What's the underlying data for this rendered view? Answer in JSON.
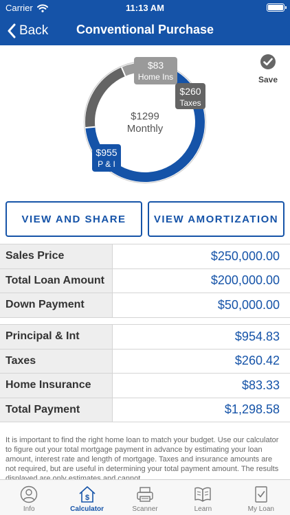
{
  "status_bar": {
    "carrier": "Carrier",
    "time": "11:13 AM"
  },
  "nav": {
    "back_label": "Back",
    "title": "Conventional Purchase"
  },
  "chart_data": {
    "type": "pie",
    "center_label": [
      "$1299",
      "Monthly"
    ],
    "slices": [
      {
        "label": "P & I",
        "value_label": "$955",
        "value": 954.83,
        "color": "#1553a8"
      },
      {
        "label": "Taxes",
        "value_label": "$260",
        "value": 260.42,
        "color": "#646464"
      },
      {
        "label": "Home Ins",
        "value_label": "$83",
        "value": 83.33,
        "color": "#9a9a9a"
      }
    ]
  },
  "save": {
    "label": "Save"
  },
  "buttons": {
    "share": "VIEW AND SHARE",
    "amortization": "VIEW AMORTIZATION"
  },
  "loan_table": [
    {
      "label": "Sales Price",
      "value": "$250,000.00"
    },
    {
      "label": "Total Loan Amount",
      "value": "$200,000.00"
    },
    {
      "label": "Down Payment",
      "value": "$50,000.00"
    }
  ],
  "payment_table": [
    {
      "label": "Principal & Int",
      "value": "$954.83"
    },
    {
      "label": "Taxes",
      "value": "$260.42"
    },
    {
      "label": "Home Insurance",
      "value": "$83.33"
    },
    {
      "label": "Total Payment",
      "value": "$1,298.58"
    }
  ],
  "disclaimer": "It is important to find the right home loan to match your budget. Use our calculator to figure out your total mortgage payment in advance by estimating your loan amount, interest rate and length of mortgage. Taxes and insurance amounts are not required, but are useful in determining your total payment amount.  The results displayed are only estimates and cannot",
  "tabs": [
    {
      "label": "Info",
      "icon": "person-icon",
      "active": false
    },
    {
      "label": "Calculator",
      "icon": "calculator-house-icon",
      "active": true
    },
    {
      "label": "Scanner",
      "icon": "scanner-icon",
      "active": false
    },
    {
      "label": "Learn",
      "icon": "book-icon",
      "active": false
    },
    {
      "label": "My Loan",
      "icon": "document-check-icon",
      "active": false
    }
  ]
}
